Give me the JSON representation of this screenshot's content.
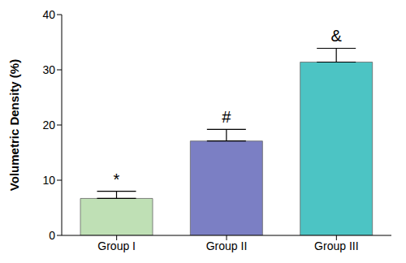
{
  "chart_data": {
    "type": "bar",
    "y_label": "Volumetric Density (%)",
    "categories": [
      "Group I",
      "Group II",
      "Group III"
    ],
    "values": [
      6.7,
      17.1,
      31.4
    ],
    "errors": [
      1.3,
      2.1,
      2.5
    ],
    "annotations": [
      "*",
      "#",
      "&"
    ],
    "colors": [
      "#bfe0b5",
      "#7b7fc4",
      "#4cc4c4"
    ],
    "ylim": [
      0,
      40
    ],
    "yticks": [
      0,
      10,
      20,
      30,
      40
    ],
    "grid": false
  }
}
